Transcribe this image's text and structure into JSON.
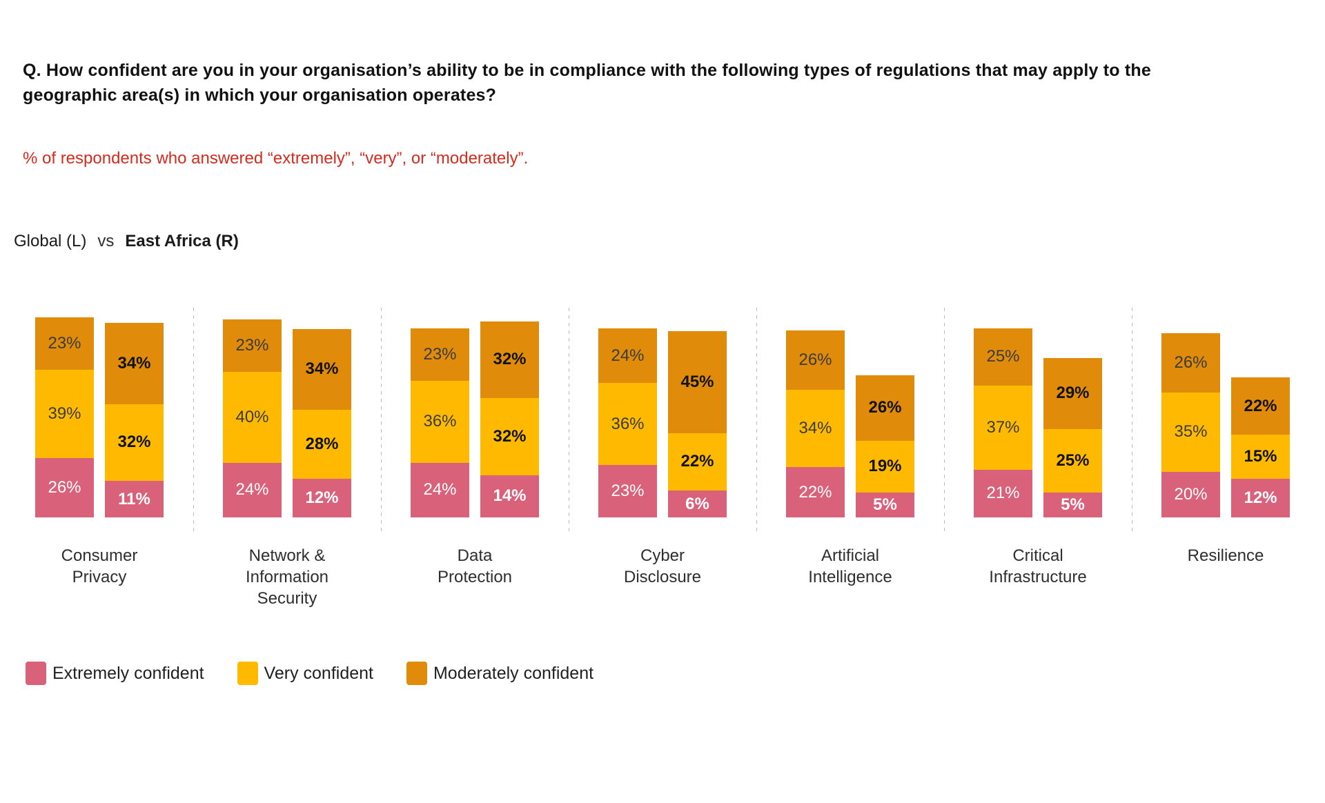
{
  "header": {
    "question": "Q. How confident are you in your organisation’s ability to be in compliance with the following types of regulations that may apply to the\ngeographic area(s) in which your organisation operates?",
    "subtitle": "% of respondents who answered “extremely”, “very”, or “moderately”.",
    "comparison": {
      "left": "Global (L)",
      "vs": "vs",
      "right": "East Africa (R)"
    }
  },
  "legend": {
    "items": [
      {
        "key": "extremely",
        "label": "Extremely confident",
        "color": "#D9617A"
      },
      {
        "key": "very",
        "label": "Very confident",
        "color": "#FFBA00"
      },
      {
        "key": "moderately",
        "label": "Moderately confident",
        "color": "#E08B0A"
      }
    ]
  },
  "chart_data": {
    "type": "bar",
    "stacked": true,
    "unit": "%",
    "title": "Confidence in compliance ability by regulation type — Global (L) vs East Africa (R)",
    "categories": [
      "Consumer Privacy",
      "Network & Information Security",
      "Data Protection",
      "Cyber Disclosure",
      "Artificial Intelligence",
      "Critical Infrastructure",
      "Resilience"
    ],
    "stack_order_top_to_bottom": [
      "moderately",
      "very",
      "extremely"
    ],
    "series": [
      {
        "name": "Global",
        "position": "left",
        "values": {
          "extremely": [
            26,
            24,
            24,
            23,
            22,
            21,
            20
          ],
          "very": [
            39,
            40,
            36,
            36,
            34,
            37,
            35
          ],
          "moderately": [
            23,
            23,
            23,
            24,
            26,
            25,
            26
          ]
        }
      },
      {
        "name": "East Africa",
        "position": "right",
        "values": {
          "extremely": [
            11,
            12,
            14,
            6,
            5,
            5,
            12
          ],
          "very": [
            32,
            28,
            32,
            22,
            19,
            25,
            15
          ],
          "moderately": [
            34,
            34,
            32,
            45,
            26,
            29,
            22
          ]
        }
      }
    ],
    "totals": {
      "Global": [
        88,
        87,
        83,
        83,
        82,
        83,
        81
      ],
      "East Africa": [
        77,
        74,
        78,
        73,
        50,
        59,
        49
      ]
    },
    "legend_position": "bottom",
    "grid": false
  }
}
